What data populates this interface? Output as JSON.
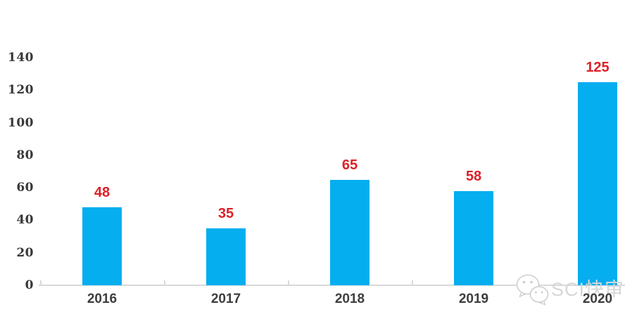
{
  "chart_data": {
    "type": "bar",
    "categories": [
      "2016",
      "2017",
      "2018",
      "2019",
      "2020"
    ],
    "values": [
      48,
      35,
      65,
      58,
      125
    ],
    "title": "",
    "xlabel": "",
    "ylabel": "",
    "ylim": [
      0,
      140
    ],
    "yticks": [
      0,
      20,
      40,
      60,
      80,
      100,
      120,
      140
    ],
    "grid": false,
    "legend_position": "none",
    "bar_color": "#04aeef",
    "value_label_color": "#dd2027",
    "category_label_color": "#3d3d3d",
    "ytick_label_color": "#383838",
    "axis_line_color": "#d9d9d9"
  },
  "watermark": {
    "icon": "wechat-icon",
    "text": "SCI快审",
    "color": "#d7d7d7"
  }
}
